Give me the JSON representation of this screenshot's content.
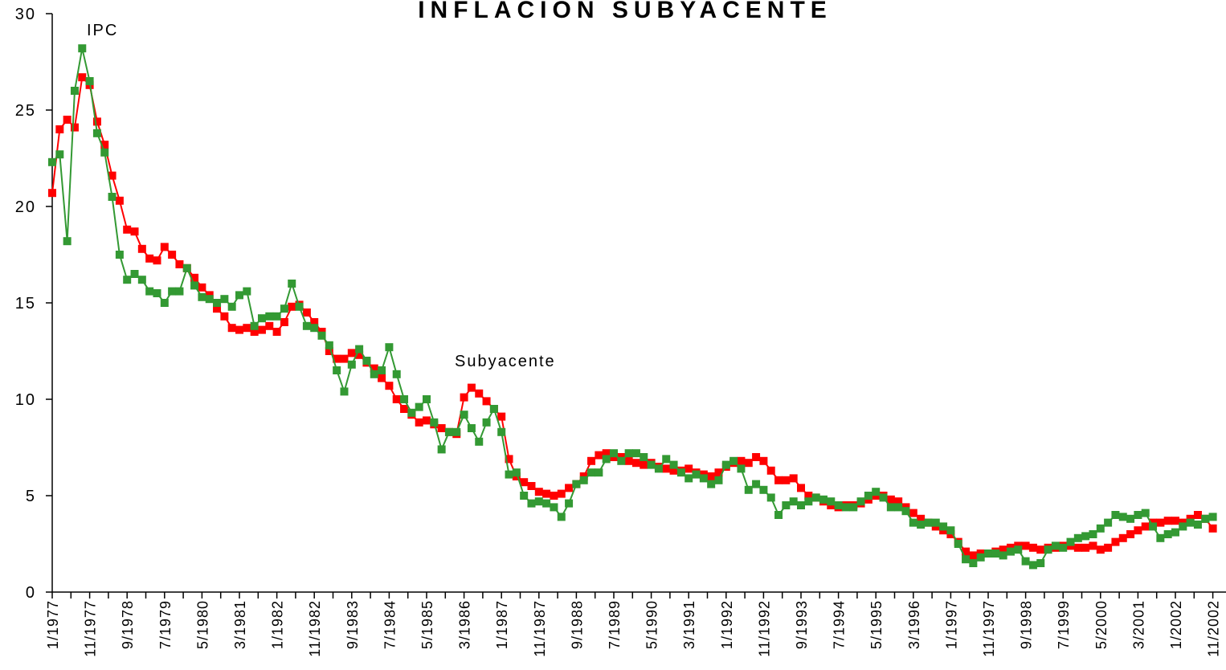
{
  "chart_data": {
    "type": "line",
    "title": "INFLACION SUBYACENTE",
    "categories": [
      "1/1977",
      null,
      null,
      null,
      null,
      "11/1977",
      null,
      null,
      null,
      null,
      "9/1978",
      null,
      null,
      null,
      null,
      "7/1979",
      null,
      null,
      null,
      null,
      "5/1980",
      null,
      null,
      null,
      null,
      "3/1981",
      null,
      null,
      null,
      null,
      "1/1982",
      null,
      null,
      null,
      null,
      "11/1982",
      null,
      null,
      null,
      null,
      "9/1983",
      null,
      null,
      null,
      null,
      "7/1984",
      null,
      null,
      null,
      null,
      "5/1985",
      null,
      null,
      null,
      null,
      "3/1986",
      null,
      null,
      null,
      null,
      "1/1987",
      null,
      null,
      null,
      null,
      "11/1987",
      null,
      null,
      null,
      null,
      "9/1988",
      null,
      null,
      null,
      null,
      "7/1989",
      null,
      null,
      null,
      null,
      "5/1990",
      null,
      null,
      null,
      null,
      "3/1991",
      null,
      null,
      null,
      null,
      "1/1992",
      null,
      null,
      null,
      null,
      "11/1992",
      null,
      null,
      null,
      null,
      "9/1993",
      null,
      null,
      null,
      null,
      "7/1994",
      null,
      null,
      null,
      null,
      "5/1995",
      null,
      null,
      null,
      null,
      "3/1996",
      null,
      null,
      null,
      null,
      "1/1997",
      null,
      null,
      null,
      null,
      "11/1997",
      null,
      null,
      null,
      null,
      "9/1998",
      null,
      null,
      null,
      null,
      "7/1999",
      null,
      null,
      null,
      null,
      "5/2000",
      null,
      null,
      null,
      null,
      "3/2001",
      null,
      null,
      null,
      null,
      "1/2002",
      null,
      null,
      null,
      null,
      "11/2002"
    ],
    "series": [
      {
        "name": "Subyacente",
        "color": "#ff0000",
        "values": [
          20.7,
          24.0,
          24.5,
          24.1,
          26.7,
          26.3,
          24.4,
          23.2,
          21.6,
          20.3,
          18.8,
          18.7,
          17.8,
          17.3,
          17.2,
          17.9,
          17.5,
          17.0,
          16.8,
          16.3,
          15.8,
          15.4,
          14.7,
          14.3,
          13.7,
          13.6,
          13.7,
          13.5,
          13.6,
          13.8,
          13.5,
          14.0,
          14.8,
          14.9,
          14.5,
          14.0,
          13.5,
          12.5,
          12.1,
          12.1,
          12.4,
          12.3,
          11.9,
          11.6,
          11.1,
          10.7,
          10.0,
          9.5,
          9.2,
          8.8,
          8.9,
          8.7,
          8.5,
          8.3,
          8.2,
          10.1,
          10.6,
          10.3,
          9.9,
          9.5,
          9.1,
          6.9,
          6.0,
          5.7,
          5.5,
          5.2,
          5.1,
          5.0,
          5.1,
          5.4,
          5.6,
          6.0,
          6.8,
          7.1,
          7.2,
          7.0,
          7.0,
          6.8,
          6.7,
          6.6,
          6.7,
          6.5,
          6.4,
          6.3,
          6.3,
          6.4,
          6.2,
          6.1,
          6.0,
          6.2,
          6.5,
          6.7,
          6.8,
          6.7,
          7.0,
          6.8,
          6.3,
          5.8,
          5.8,
          5.9,
          5.4,
          5.0,
          4.9,
          4.7,
          4.5,
          4.4,
          4.5,
          4.5,
          4.6,
          4.8,
          5.0,
          5.0,
          4.8,
          4.7,
          4.4,
          4.1,
          3.8,
          3.6,
          3.4,
          3.2,
          3.0,
          2.6,
          2.1,
          1.9,
          2.0,
          2.0,
          2.1,
          2.2,
          2.3,
          2.4,
          2.4,
          2.3,
          2.2,
          2.3,
          2.3,
          2.4,
          2.4,
          2.3,
          2.3,
          2.4,
          2.2,
          2.3,
          2.6,
          2.8,
          3.0,
          3.2,
          3.4,
          3.6,
          3.6,
          3.7,
          3.7,
          3.6,
          3.8,
          4.0,
          3.8,
          3.3
        ]
      },
      {
        "name": "IPC",
        "color": "#339933",
        "values": [
          22.3,
          22.7,
          18.2,
          26.0,
          28.2,
          26.5,
          23.8,
          22.8,
          20.5,
          17.5,
          16.2,
          16.5,
          16.2,
          15.6,
          15.5,
          15.0,
          15.6,
          15.6,
          16.8,
          15.9,
          15.3,
          15.2,
          15.0,
          15.2,
          14.8,
          15.4,
          15.6,
          13.8,
          14.2,
          14.3,
          14.3,
          14.7,
          16.0,
          14.8,
          13.8,
          13.7,
          13.3,
          12.8,
          11.5,
          10.4,
          11.8,
          12.6,
          12.0,
          11.3,
          11.5,
          12.7,
          11.3,
          10.0,
          9.3,
          9.6,
          10.0,
          8.8,
          7.4,
          8.3,
          8.3,
          9.2,
          8.5,
          7.8,
          8.8,
          9.5,
          8.3,
          6.1,
          6.2,
          5.0,
          4.6,
          4.7,
          4.6,
          4.4,
          3.9,
          4.6,
          5.6,
          5.8,
          6.2,
          6.2,
          6.9,
          7.2,
          6.8,
          7.2,
          7.2,
          7.0,
          6.6,
          6.4,
          6.9,
          6.6,
          6.2,
          5.9,
          6.1,
          5.9,
          5.6,
          5.8,
          6.6,
          6.8,
          6.4,
          5.3,
          5.6,
          5.3,
          4.9,
          4.0,
          4.5,
          4.7,
          4.5,
          4.7,
          4.9,
          4.8,
          4.7,
          4.5,
          4.4,
          4.4,
          4.7,
          5.0,
          5.2,
          4.9,
          4.4,
          4.4,
          4.2,
          3.6,
          3.5,
          3.6,
          3.6,
          3.4,
          3.2,
          2.5,
          1.7,
          1.5,
          1.8,
          2.0,
          2.0,
          1.9,
          2.1,
          2.2,
          1.6,
          1.4,
          1.5,
          2.2,
          2.4,
          2.3,
          2.6,
          2.8,
          2.9,
          3.0,
          3.3,
          3.6,
          4.0,
          3.9,
          3.8,
          4.0,
          4.1,
          3.4,
          2.8,
          3.0,
          3.1,
          3.4,
          3.6,
          3.5,
          3.8,
          3.9
        ]
      }
    ],
    "ylim": [
      0,
      30
    ],
    "yticks": [
      0,
      5,
      10,
      15,
      20,
      25,
      30
    ],
    "grid": false
  }
}
